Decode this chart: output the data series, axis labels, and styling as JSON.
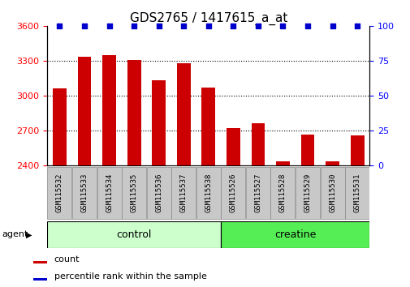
{
  "title": "GDS2765 / 1417615_a_at",
  "samples": [
    "GSM115532",
    "GSM115533",
    "GSM115534",
    "GSM115535",
    "GSM115536",
    "GSM115537",
    "GSM115538",
    "GSM115526",
    "GSM115527",
    "GSM115528",
    "GSM115529",
    "GSM115530",
    "GSM115531"
  ],
  "counts": [
    3060,
    3330,
    3350,
    3305,
    3130,
    3275,
    3070,
    2715,
    2760,
    2435,
    2665,
    2435,
    2655
  ],
  "bar_color": "#cc0000",
  "dot_color": "#0000cc",
  "ylim_left": [
    2400,
    3600
  ],
  "ylim_right": [
    0,
    100
  ],
  "yticks_left": [
    2400,
    2700,
    3000,
    3300,
    3600
  ],
  "yticks_right": [
    0,
    25,
    50,
    75,
    100
  ],
  "grid_yticks": [
    2700,
    3000,
    3300
  ],
  "control_samples": 7,
  "creatine_samples": 6,
  "control_label": "control",
  "creatine_label": "creatine",
  "agent_label": "agent",
  "legend_count_label": "count",
  "legend_percentile_label": "percentile rank within the sample",
  "background_color": "#ffffff",
  "control_bg": "#ccffcc",
  "creatine_bg": "#55ee55",
  "sample_bg": "#c8c8c8",
  "title_fontsize": 11,
  "tick_fontsize": 8,
  "sample_fontsize": 6.5,
  "group_fontsize": 9,
  "legend_fontsize": 8,
  "agent_fontsize": 8,
  "bar_width": 0.55
}
